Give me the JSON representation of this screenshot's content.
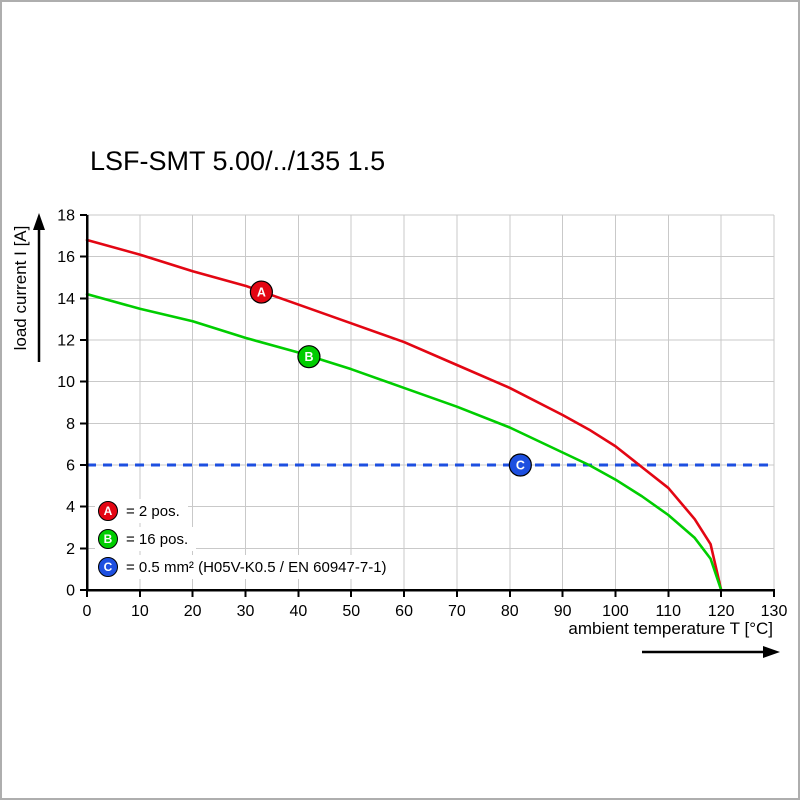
{
  "chart_data": {
    "type": "line",
    "title": "LSF-SMT 5.00/../135 1.5",
    "xlabel": "ambient temperature T [°C]",
    "ylabel": "load current I [A]",
    "xlim": [
      0,
      130
    ],
    "ylim": [
      0,
      18
    ],
    "x_ticks": [
      0,
      10,
      20,
      30,
      40,
      50,
      60,
      70,
      80,
      90,
      100,
      110,
      120,
      130
    ],
    "y_ticks": [
      0,
      2,
      4,
      6,
      8,
      10,
      12,
      14,
      16,
      18
    ],
    "grid": true,
    "legend_position": "bottom-left",
    "colors": {
      "red": "#e30613",
      "green": "#00cd00",
      "blue": "#1d4fe0",
      "grid": "#c9c9c9",
      "axis": "#000000"
    },
    "series": [
      {
        "id": "A",
        "name": "2 pos.",
        "color": "#e30613",
        "points": [
          [
            0,
            16.8
          ],
          [
            10,
            16.1
          ],
          [
            20,
            15.3
          ],
          [
            30,
            14.6
          ],
          [
            40,
            13.7
          ],
          [
            50,
            12.8
          ],
          [
            60,
            11.9
          ],
          [
            70,
            10.8
          ],
          [
            80,
            9.7
          ],
          [
            90,
            8.4
          ],
          [
            95,
            7.7
          ],
          [
            100,
            6.9
          ],
          [
            105,
            5.9
          ],
          [
            110,
            4.9
          ],
          [
            115,
            3.4
          ],
          [
            118,
            2.2
          ],
          [
            120,
            0
          ]
        ],
        "marker": {
          "x": 33,
          "y": 14.3
        }
      },
      {
        "id": "B",
        "name": "16 pos.",
        "color": "#00cd00",
        "points": [
          [
            0,
            14.2
          ],
          [
            10,
            13.5
          ],
          [
            20,
            12.9
          ],
          [
            30,
            12.1
          ],
          [
            40,
            11.4
          ],
          [
            50,
            10.6
          ],
          [
            60,
            9.7
          ],
          [
            70,
            8.8
          ],
          [
            80,
            7.8
          ],
          [
            90,
            6.6
          ],
          [
            95,
            6.0
          ],
          [
            100,
            5.3
          ],
          [
            105,
            4.5
          ],
          [
            110,
            3.6
          ],
          [
            115,
            2.5
          ],
          [
            118,
            1.5
          ],
          [
            120,
            0
          ]
        ],
        "marker": {
          "x": 42,
          "y": 11.2
        }
      }
    ],
    "threshold": {
      "id": "C",
      "value": 6,
      "color": "#1d4fe0",
      "style": "dashed",
      "marker": {
        "x": 82,
        "y": 6
      }
    },
    "legend": [
      {
        "id": "A",
        "color": "#e30613",
        "label": "= 2 pos."
      },
      {
        "id": "B",
        "color": "#00cd00",
        "label": "= 16 pos."
      },
      {
        "id": "C",
        "color": "#1d4fe0",
        "label": "= 0.5 mm² (H05V-K0.5 / EN 60947-7-1)"
      }
    ]
  }
}
